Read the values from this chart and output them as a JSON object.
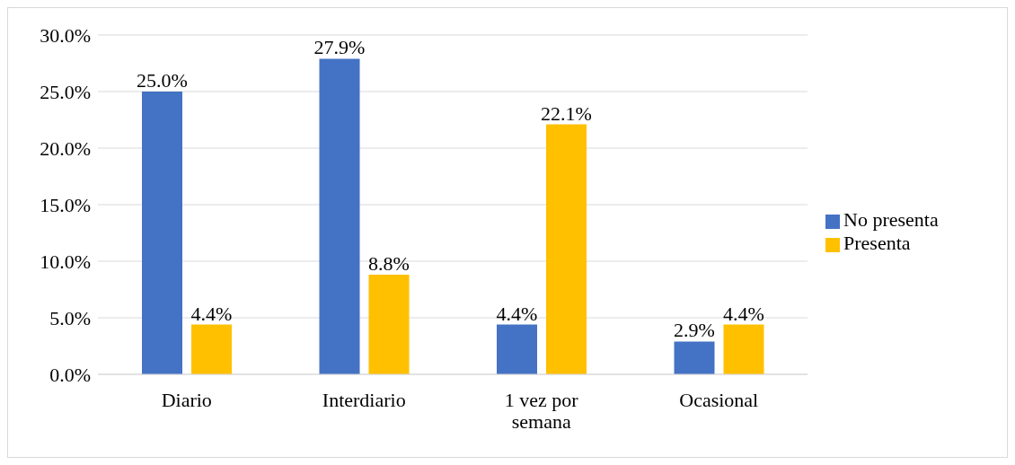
{
  "chart_data": {
    "type": "bar",
    "categories": [
      "Diario",
      "Interdiario",
      "1 vez por semana",
      "Ocasional"
    ],
    "series": [
      {
        "name": "No presenta",
        "color": "#4472c4",
        "values": [
          25.0,
          27.9,
          4.4,
          2.9
        ],
        "value_labels": [
          "25.0%",
          "27.9%",
          "4.4%",
          "2.9%"
        ]
      },
      {
        "name": "Presenta",
        "color": "#ffc000",
        "values": [
          4.4,
          8.8,
          22.1,
          4.4
        ],
        "value_labels": [
          "4.4%",
          "8.8%",
          "22.1%",
          "4.4%"
        ]
      }
    ],
    "ylim": [
      0,
      30
    ],
    "yticks": [
      {
        "value": 0,
        "label": "0.0%"
      },
      {
        "value": 5,
        "label": "5.0%"
      },
      {
        "value": 10,
        "label": "10.0%"
      },
      {
        "value": 15,
        "label": "15.0%"
      },
      {
        "value": 20,
        "label": "20.0%"
      },
      {
        "value": 25,
        "label": "25.0%"
      },
      {
        "value": 30,
        "label": "30.0%"
      }
    ],
    "grid": "y",
    "legend": "right"
  }
}
